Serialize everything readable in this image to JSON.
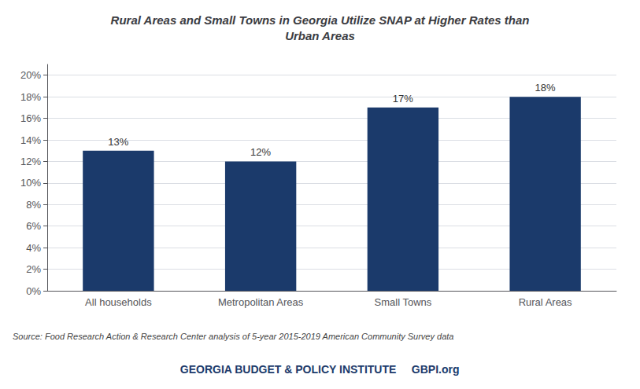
{
  "chart_data": {
    "type": "bar",
    "title": "Rural Areas and Small Towns in Georgia Utilize SNAP at Higher Rates than\nUrban Areas",
    "categories": [
      "All households",
      "Metropolitan Areas",
      "Small Towns",
      "Rural Areas"
    ],
    "values": [
      0.13,
      0.12,
      0.17,
      0.18
    ],
    "value_labels": [
      "13%",
      "12%",
      "17%",
      "18%"
    ],
    "data_labels": true,
    "color": "#1b3a6b",
    "ylim": [
      0,
      0.21
    ],
    "yticks": [
      {
        "value": 0.0,
        "label": "0%"
      },
      {
        "value": 0.02,
        "label": "2%"
      },
      {
        "value": 0.04,
        "label": "4%"
      },
      {
        "value": 0.06,
        "label": "6%"
      },
      {
        "value": 0.08,
        "label": "8%"
      },
      {
        "value": 0.1,
        "label": "10%"
      },
      {
        "value": 0.12,
        "label": "12%"
      },
      {
        "value": 0.14,
        "label": "14%"
      },
      {
        "value": 0.16,
        "label": "16%"
      },
      {
        "value": 0.18,
        "label": "18%"
      },
      {
        "value": 0.2,
        "label": "20%"
      }
    ],
    "grid": true,
    "annotations": [
      "Source: Food Research Action & Research Center analysis of 5-year 2015-2019 American Community Survey data",
      "GEORGIA BUDGET & POLICY INSTITUTE",
      "GBPI.org"
    ]
  }
}
